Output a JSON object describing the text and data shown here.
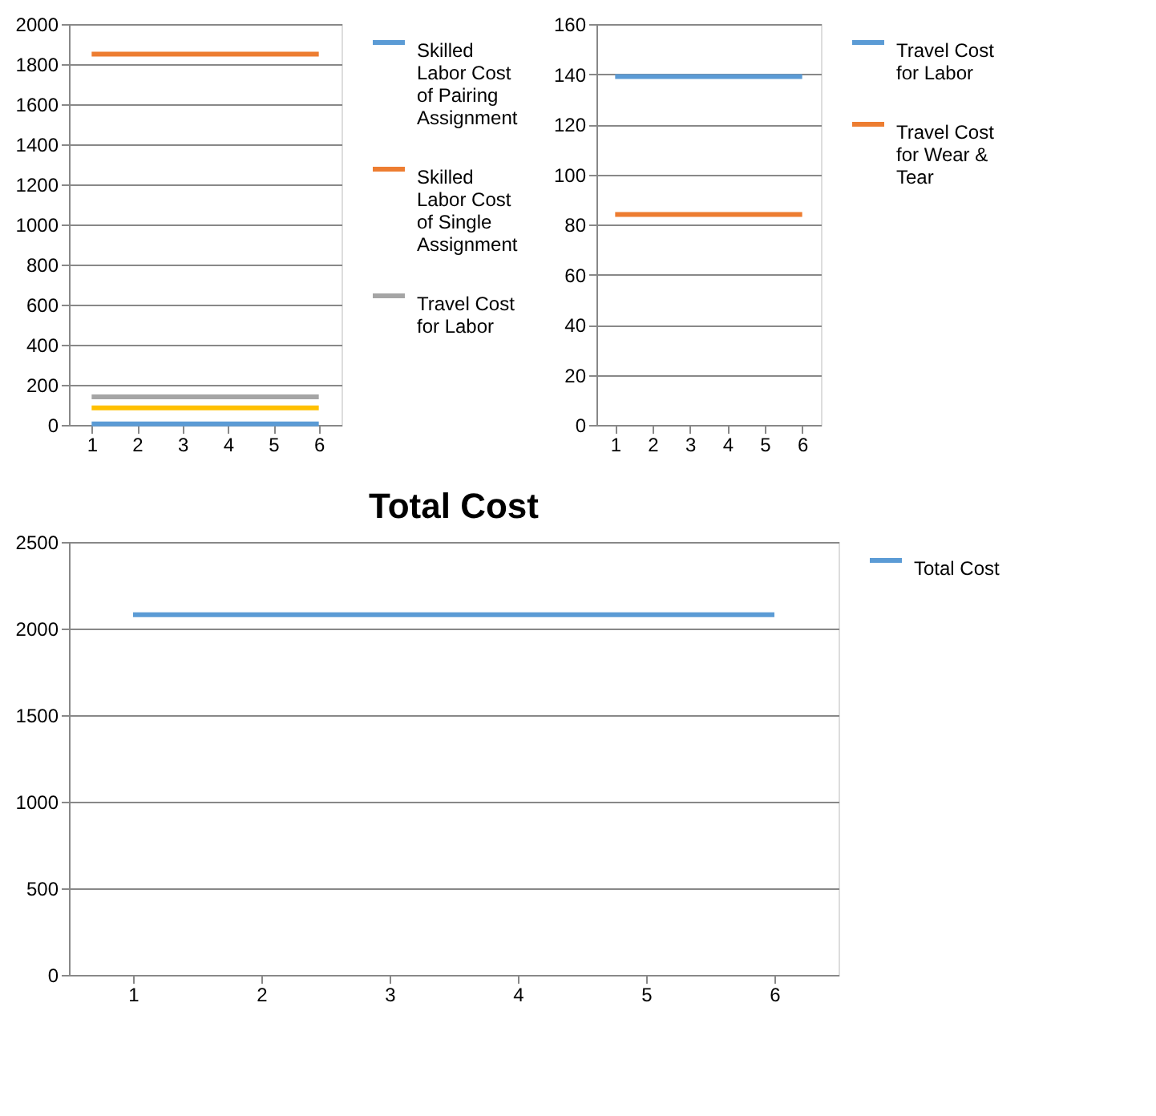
{
  "chart_data": [
    {
      "type": "line",
      "categories": [
        "1",
        "2",
        "3",
        "4",
        "5",
        "6"
      ],
      "ylim": [
        0,
        2000
      ],
      "yticks": [
        0,
        200,
        400,
        600,
        800,
        1000,
        1200,
        1400,
        1600,
        1800,
        2000
      ],
      "grid": "y",
      "legend": "right",
      "marker": "none",
      "series": [
        {
          "name": "Skilled Labor Cost of Pairing Assignment",
          "color": "#5b9bd5",
          "values": [
            5,
            5,
            5,
            5,
            5,
            5
          ]
        },
        {
          "name": "Skilled Labor Cost of Single Assignment",
          "color": "#ed7d31",
          "values": [
            1850,
            1850,
            1850,
            1850,
            1850,
            1850
          ]
        },
        {
          "name": "Travel Cost for Labor",
          "color": "#a5a5a5",
          "values": [
            140,
            140,
            140,
            140,
            140,
            140
          ]
        },
        {
          "color": "#ffc000",
          "values": [
            85,
            85,
            85,
            85,
            85,
            85
          ]
        }
      ]
    },
    {
      "type": "line",
      "categories": [
        "1",
        "2",
        "3",
        "4",
        "5",
        "6"
      ],
      "ylim": [
        0,
        160
      ],
      "yticks": [
        0,
        20,
        40,
        60,
        80,
        100,
        120,
        140,
        160
      ],
      "grid": "y",
      "legend": "right",
      "marker": "none",
      "series": [
        {
          "name": "Travel Cost for Labor",
          "color": "#5b9bd5",
          "values": [
            139,
            139,
            139,
            139,
            139,
            139
          ]
        },
        {
          "name": "Travel Cost for Wear & Tear",
          "color": "#ed7d31",
          "values": [
            84,
            84,
            84,
            84,
            84,
            84
          ]
        }
      ]
    },
    {
      "type": "line",
      "title": "Total Cost",
      "categories": [
        "1",
        "2",
        "3",
        "4",
        "5",
        "6"
      ],
      "ylim": [
        0,
        2500
      ],
      "yticks": [
        0,
        500,
        1000,
        1500,
        2000,
        2500
      ],
      "grid": "y",
      "legend": "right",
      "marker": "none",
      "series": [
        {
          "name": "Total Cost",
          "color": "#5b9bd5",
          "values": [
            2080,
            2080,
            2080,
            2080,
            2080,
            2080
          ]
        }
      ]
    }
  ]
}
